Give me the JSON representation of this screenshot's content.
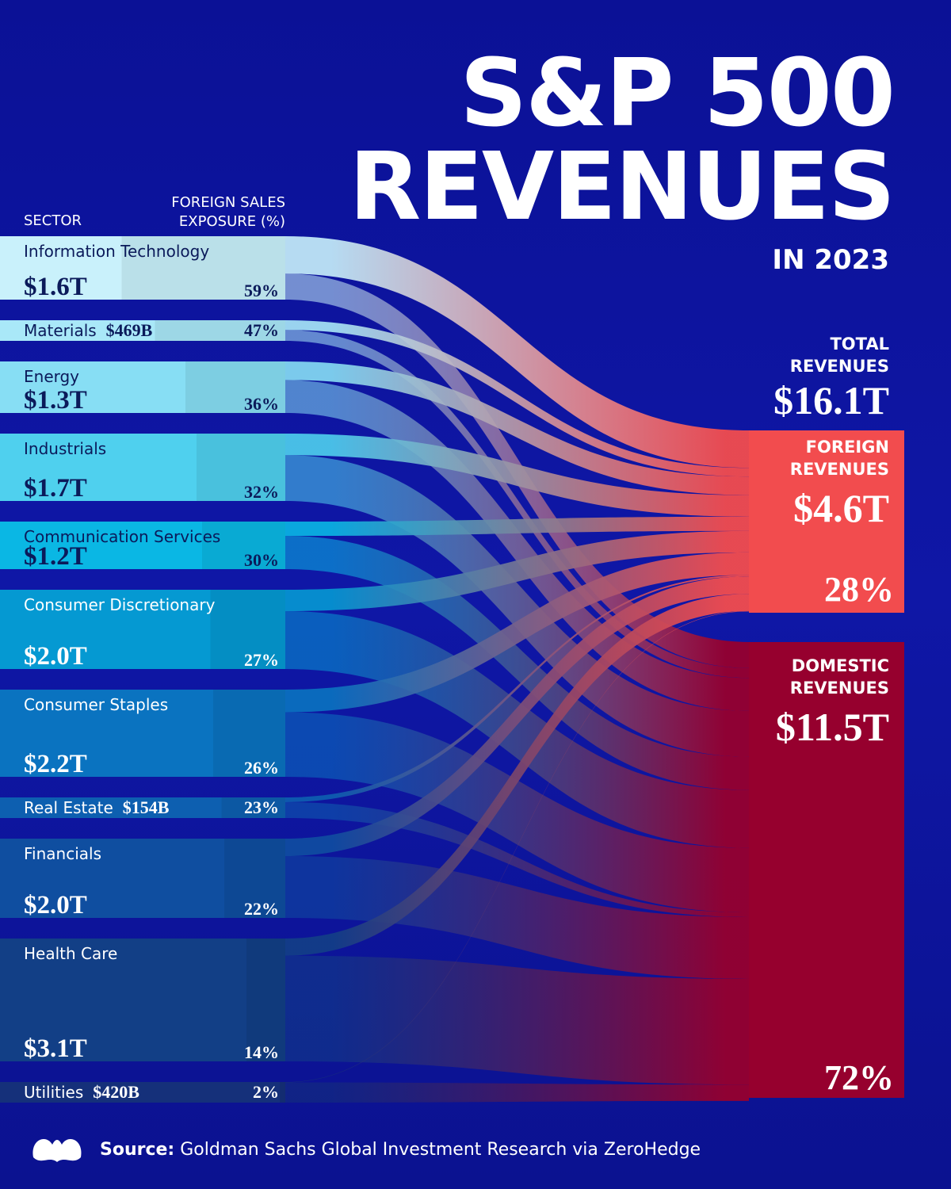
{
  "chart_data": {
    "type": "sankey",
    "title": "S&P 500 REVENUES",
    "subtitle": "IN 2023",
    "sector_header": "SECTOR",
    "exposure_header": "FOREIGN SALES EXPOSURE (%)",
    "sectors": [
      {
        "name": "Information Technology",
        "value": 1.6,
        "value_label": "$1.6T",
        "foreign_pct": 59,
        "foreign_pct_label": "59%",
        "color": "#c9f1fb"
      },
      {
        "name": "Materials",
        "value": 0.469,
        "value_label": "$469B",
        "foreign_pct": 47,
        "foreign_pct_label": "47%",
        "color": "#a9e8f8"
      },
      {
        "name": "Energy",
        "value": 1.3,
        "value_label": "$1.3T",
        "foreign_pct": 36,
        "foreign_pct_label": "36%",
        "color": "#87def4"
      },
      {
        "name": "Industrials",
        "value": 1.7,
        "value_label": "$1.7T",
        "foreign_pct": 32,
        "foreign_pct_label": "32%",
        "color": "#4fd0ee"
      },
      {
        "name": "Communication Services",
        "value": 1.2,
        "value_label": "$1.2T",
        "foreign_pct": 30,
        "foreign_pct_label": "30%",
        "color": "#0ab7e4"
      },
      {
        "name": "Consumer Discretionary",
        "value": 2.0,
        "value_label": "$2.0T",
        "foreign_pct": 27,
        "foreign_pct_label": "27%",
        "color": "#0599d2"
      },
      {
        "name": "Consumer Staples",
        "value": 2.2,
        "value_label": "$2.2T",
        "foreign_pct": 26,
        "foreign_pct_label": "26%",
        "color": "#0a73c0"
      },
      {
        "name": "Real Estate",
        "value": 0.154,
        "value_label": "$154B",
        "foreign_pct": 23,
        "foreign_pct_label": "23%",
        "color": "#0d5fb0"
      },
      {
        "name": "Financials",
        "value": 2.0,
        "value_label": "$2.0T",
        "foreign_pct": 22,
        "foreign_pct_label": "22%",
        "color": "#0f4ea0"
      },
      {
        "name": "Health Care",
        "value": 3.1,
        "value_label": "$3.1T",
        "foreign_pct": 14,
        "foreign_pct_label": "14%",
        "color": "#123f86"
      },
      {
        "name": "Utilities",
        "value": 0.42,
        "value_label": "$420B",
        "foreign_pct": 2,
        "foreign_pct_label": "2%",
        "color": "#15307a"
      }
    ],
    "total": {
      "label": "TOTAL REVENUES",
      "value": 16.1,
      "value_label": "$16.1T"
    },
    "foreign": {
      "label": "FOREIGN REVENUES",
      "value": 4.6,
      "value_label": "$4.6T",
      "share": 28,
      "share_label": "28%",
      "color": "#f24c4e"
    },
    "domestic": {
      "label": "DOMESTIC REVENUES",
      "value": 11.5,
      "value_label": "$11.5T",
      "share": 72,
      "share_label": "72%",
      "color": "#96002e"
    }
  },
  "source_label": "Source:",
  "source": "Goldman Sachs Global Investment Research via ZeroHedge"
}
